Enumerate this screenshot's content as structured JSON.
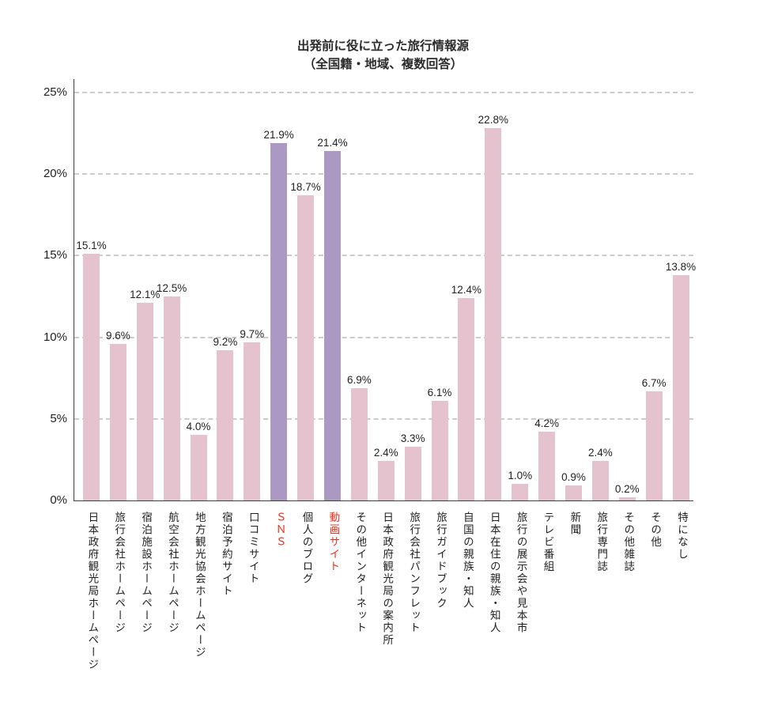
{
  "chart": {
    "title_line1": "出発前に役に立った旅行情報源",
    "title_line2": "（全国籍・地域、複数回答）"
  },
  "chart_data": {
    "type": "bar",
    "title": "出発前に役に立った旅行情報源（全国籍・地域、複数回答）",
    "xlabel": "",
    "ylabel": "",
    "ylim": [
      0,
      25
    ],
    "grid": "horizontal-dashed",
    "legend": "none",
    "categories": [
      "日本政府観光局ホームページ",
      "旅行会社ホームページ",
      "宿泊施設ホームページ",
      "航空会社ホームページ",
      "地方観光協会ホームページ",
      "宿泊予約サイト",
      "口コミサイト",
      "ＳＮＳ",
      "個人のブログ",
      "動画サイト",
      "その他インターネット",
      "日本政府観光局の案内所",
      "旅行会社パンフレット",
      "旅行ガイドブック",
      "自国の親族・知人",
      "日本在住の親族・知人",
      "旅行の展示会や見本市",
      "テレビ番組",
      "新聞",
      "旅行専門誌",
      "その他雑誌",
      "その他",
      "特になし"
    ],
    "values": [
      15.1,
      9.6,
      12.1,
      12.5,
      4.0,
      9.2,
      9.7,
      21.9,
      18.7,
      21.4,
      6.9,
      2.4,
      3.3,
      6.1,
      12.4,
      22.8,
      1.0,
      4.2,
      0.9,
      2.4,
      0.2,
      6.7,
      13.8
    ],
    "value_labels": [
      "15.1%",
      "9.6%",
      "12.1%",
      "12.5%",
      "4.0%",
      "9.2%",
      "9.7%",
      "21.9%",
      "18.7%",
      "21.4%",
      "6.9%",
      "2.4%",
      "3.3%",
      "6.1%",
      "12.4%",
      "22.8%",
      "1.0%",
      "4.2%",
      "0.9%",
      "2.4%",
      "0.2%",
      "6.7%",
      "13.8%"
    ],
    "highlighted_indices": [
      7,
      9
    ],
    "yticks": [
      {
        "value": 0,
        "label": "0%"
      },
      {
        "value": 5,
        "label": "5%"
      },
      {
        "value": 10,
        "label": "10%"
      },
      {
        "value": 15,
        "label": "15%"
      },
      {
        "value": 20,
        "label": "20%"
      },
      {
        "value": 25,
        "label": "25%"
      }
    ],
    "colors": {
      "bar": "#e5c3ce",
      "bar_highlight": "#ab99c4",
      "highlight_category_label": "#e8311c",
      "gridline": "#cbcbcb",
      "axis": "#3f3f3f",
      "text": "#1f1f1f"
    }
  }
}
